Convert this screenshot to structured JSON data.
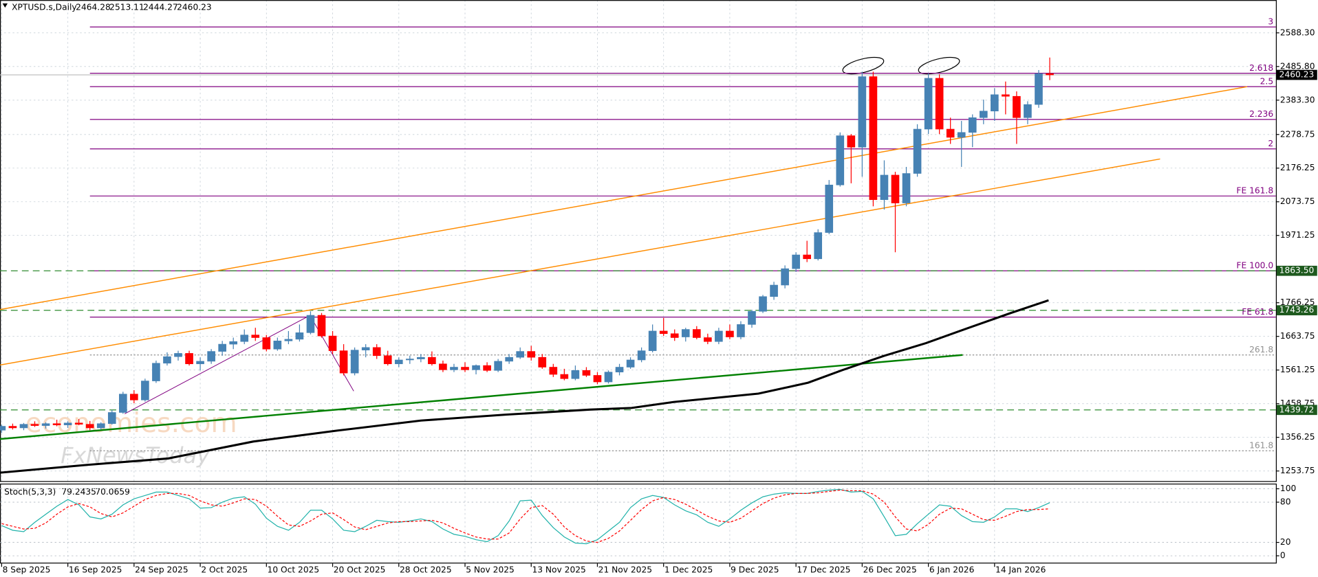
{
  "chart_data": {
    "type": "candlestick",
    "title": "XPTUSD.s,Daily",
    "categories": [
      "8 Sep 2025",
      null,
      null,
      null,
      null,
      null,
      "16 Sep 2025",
      null,
      null,
      null,
      null,
      null,
      "24 Sep 2025",
      null,
      null,
      null,
      null,
      null,
      "2 Oct 2025",
      null,
      null,
      null,
      null,
      null,
      "10 Oct 2025",
      null,
      null,
      null,
      null,
      null,
      "20 Oct 2025",
      null,
      null,
      null,
      null,
      null,
      "28 Oct 2025",
      null,
      null,
      null,
      null,
      null,
      "5 Nov 2025",
      null,
      null,
      null,
      null,
      null,
      "13 Nov 2025",
      null,
      null,
      null,
      null,
      null,
      "21 Nov 2025",
      null,
      null,
      null,
      null,
      null,
      "1 Dec 2025",
      null,
      null,
      null,
      null,
      null,
      "9 Dec 2025",
      null,
      null,
      null,
      null,
      null,
      "17 Dec 2025",
      null,
      null,
      null,
      null,
      null,
      "26 Dec 2025",
      null,
      null,
      null,
      null,
      null,
      "6 Jan 2026",
      null,
      null,
      null,
      null,
      null,
      "14 Jan 2026",
      null,
      null,
      null,
      null,
      null
    ],
    "open": [
      1378,
      1390,
      1385,
      1396,
      1392,
      1398,
      1394,
      1400,
      1396,
      1385,
      1398,
      1432,
      1488,
      1470,
      1528,
      1582,
      1602,
      1612,
      1580,
      1588,
      1618,
      1640,
      1648,
      1668,
      1660,
      1625,
      1650,
      1655,
      1675,
      1728,
      1665,
      1620,
      1552,
      1622,
      1630,
      1605,
      1580,
      1592,
      1595,
      1600,
      1580,
      1562,
      1570,
      1562,
      1575,
      1560,
      1588,
      1600,
      1618,
      1600,
      1570,
      1548,
      1535,
      1560,
      1545,
      1525,
      1555,
      1570,
      1592,
      1620,
      1680,
      1672,
      1662,
      1685,
      1660,
      1648,
      1680,
      1662,
      1700,
      1740,
      1785,
      1820,
      1870,
      1912,
      1900,
      1980,
      2125,
      2275,
      2240,
      2455,
      2080,
      2155,
      2070,
      2160,
      2295,
      2450,
      2295,
      2270,
      2285,
      2330,
      2350,
      2400,
      2395,
      2330,
      2370,
      2464.28
    ],
    "high": [
      1395,
      1398,
      1400,
      1405,
      1402,
      1410,
      1405,
      1412,
      1406,
      1402,
      1440,
      1495,
      1500,
      1535,
      1590,
      1615,
      1620,
      1620,
      1600,
      1625,
      1650,
      1660,
      1685,
      1690,
      1668,
      1660,
      1680,
      1700,
      1740,
      1735,
      1680,
      1640,
      1630,
      1640,
      1640,
      1620,
      1600,
      1605,
      1610,
      1618,
      1590,
      1580,
      1585,
      1578,
      1585,
      1595,
      1610,
      1630,
      1635,
      1610,
      1580,
      1565,
      1575,
      1570,
      1555,
      1560,
      1580,
      1600,
      1630,
      1700,
      1720,
      1685,
      1690,
      1695,
      1672,
      1690,
      1700,
      1710,
      1745,
      1790,
      1830,
      1880,
      1920,
      1955,
      1990,
      2140,
      2285,
      2280,
      2470,
      2470,
      2200,
      2165,
      2180,
      2310,
      2465,
      2462,
      2330,
      2320,
      2340,
      2385,
      2420,
      2440,
      2410,
      2380,
      2475,
      2513.11
    ],
    "low": [
      1370,
      1380,
      1378,
      1388,
      1383,
      1390,
      1385,
      1393,
      1378,
      1380,
      1395,
      1428,
      1460,
      1465,
      1522,
      1575,
      1590,
      1575,
      1560,
      1580,
      1605,
      1625,
      1640,
      1650,
      1618,
      1620,
      1640,
      1648,
      1670,
      1660,
      1610,
      1545,
      1545,
      1600,
      1595,
      1575,
      1570,
      1580,
      1585,
      1575,
      1555,
      1555,
      1555,
      1548,
      1555,
      1555,
      1580,
      1595,
      1590,
      1565,
      1540,
      1530,
      1530,
      1540,
      1518,
      1520,
      1545,
      1565,
      1585,
      1615,
      1665,
      1650,
      1648,
      1655,
      1640,
      1640,
      1655,
      1655,
      1690,
      1735,
      1775,
      1810,
      1860,
      1890,
      1895,
      1975,
      2120,
      2130,
      2150,
      2060,
      2050,
      1920,
      2060,
      2150,
      2280,
      2280,
      2250,
      2180,
      2240,
      2310,
      2320,
      2340,
      2250,
      2310,
      2360,
      2444.27
    ],
    "close": [
      1390,
      1385,
      1396,
      1392,
      1398,
      1394,
      1400,
      1396,
      1385,
      1398,
      1432,
      1488,
      1470,
      1528,
      1582,
      1602,
      1612,
      1580,
      1588,
      1618,
      1640,
      1648,
      1668,
      1660,
      1625,
      1650,
      1655,
      1675,
      1728,
      1665,
      1620,
      1552,
      1622,
      1630,
      1605,
      1580,
      1592,
      1595,
      1600,
      1580,
      1562,
      1570,
      1562,
      1575,
      1560,
      1588,
      1600,
      1618,
      1600,
      1570,
      1548,
      1535,
      1560,
      1545,
      1525,
      1555,
      1570,
      1592,
      1620,
      1680,
      1672,
      1660,
      1685,
      1660,
      1648,
      1680,
      1662,
      1700,
      1740,
      1785,
      1820,
      1870,
      1912,
      1900,
      1980,
      2125,
      2275,
      2240,
      2455,
      2080,
      2155,
      2070,
      2160,
      2295,
      2450,
      2295,
      2270,
      2285,
      2330,
      2350,
      2400,
      2395,
      2330,
      2370,
      2464.28,
      2460.23
    ],
    "up_color": "#4682b4",
    "down_color": "#ff0000",
    "xlim": [
      -0.15,
      115.5
    ],
    "ylim": [
      1223,
      2688.2
    ],
    "yticks": [
      {
        "value": 2588.3,
        "label": "2588.30"
      },
      {
        "value": 2485.8,
        "label": "2485.80"
      },
      {
        "value": 2383.3,
        "label": "2383.30"
      },
      2278.75,
      2176.25,
      2073.75,
      1971.25,
      1766.25,
      1663.75,
      1561.25,
      1458.75,
      1356.25,
      1253.75
    ],
    "grid": true,
    "levels": [
      {
        "label": "3",
        "value": 2606.2,
        "color": "#800080",
        "dotted": false
      },
      {
        "label": "2.618",
        "value": 2465.3,
        "color": "#800080",
        "dotted": false
      },
      {
        "label": "2.5",
        "value": 2424.4,
        "color": "#800080",
        "dotted": false
      },
      {
        "label": "2.236",
        "value": 2324.5,
        "color": "#800080",
        "dotted": false
      },
      {
        "label": "2",
        "value": 2234.8,
        "color": "#800080",
        "dotted": false
      },
      {
        "label": "FE 161.8",
        "value": 2091.4,
        "color": "#800080",
        "dotted": false
      },
      {
        "label": "FE 100.0",
        "value": 1863.5,
        "color": "#800080",
        "dotted": false
      },
      {
        "label": "FE 61.8",
        "value": 1722.5,
        "color": "#800080",
        "dotted": false
      },
      {
        "label": "261.8",
        "value": 1607.2,
        "color": "#909090",
        "dotted": true
      },
      {
        "label": "161.8",
        "value": 1315.2,
        "color": "#909090",
        "dotted": true
      }
    ],
    "price_tags": [
      {
        "price": 2460.23,
        "color": "#000000",
        "line_color": "#c0c0c0",
        "dashed": false
      },
      {
        "price": {
          "value": 1863.5,
          "label": "1863.50"
        },
        "color": "#1e5a1e",
        "line_color": "#2e8b2e",
        "dashed": true
      },
      {
        "price": 1743.26,
        "color": "#1e5a1e",
        "line_color": "#2e8b2e",
        "dashed": true
      },
      {
        "price": 1439.72,
        "color": "#1e5a1e",
        "line_color": "#2e8b2e",
        "dashed": true
      }
    ],
    "lines": [
      {
        "color": "#ff8c00",
        "width": 1.2,
        "x": [
          -0.15,
          112.9
        ],
        "y": [
          1745.6,
          2424.4
        ]
      },
      {
        "color": "#ff8c00",
        "width": 1.2,
        "x": [
          -0.15,
          105.0
        ],
        "y": [
          1576.5,
          2204.1
        ]
      },
      {
        "color": "#008000",
        "width": 2,
        "x": [
          -0.15,
          87.1
        ],
        "y": [
          1351.1,
          1607.2
        ]
      },
      {
        "color": "#800080",
        "width": 0.8,
        "x": [
          11.15,
          27.94,
          31.91
        ],
        "y": [
          1428,
          1727.6,
          1497
        ]
      },
      {
        "color": "#000000",
        "width": 2.5,
        "x": [
          -0.15,
          7.5,
          15.1,
          22.8,
          30.4,
          38.0,
          45.7,
          53.3,
          57.1,
          60.9,
          68.6,
          73.1,
          76.2,
          80.0,
          83.8,
          87.6,
          91.5,
          94.9
        ],
        "y": [
          1248.6,
          1271.6,
          1292,
          1343.5,
          1376.7,
          1407.4,
          1425.4,
          1440.8,
          1445.9,
          1463.8,
          1489.4,
          1522.7,
          1561.2,
          1604.7,
          1643.3,
          1689.3,
          1735.4,
          1773.8
        ]
      }
    ],
    "watermark": [
      "economies.com",
      "FxNewsToday"
    ],
    "indicator": {
      "type": "line",
      "name": "Stoch(5,3,3)",
      "ylim": [
        -11.5,
        107.7
      ],
      "yticks": [
        0,
        20,
        80,
        100
      ],
      "series": [
        {
          "color": "#20b2aa",
          "dashed": false,
          "values": [
            45,
            38,
            36,
            50,
            62,
            74,
            84,
            76,
            58,
            55,
            62,
            76,
            85,
            90,
            95,
            95,
            90,
            85,
            71,
            72,
            80,
            86,
            88,
            77,
            56,
            44,
            38,
            50,
            68,
            68,
            55,
            38,
            36,
            44,
            53,
            51,
            50,
            52,
            55,
            51,
            40,
            32,
            29,
            24,
            21,
            30,
            52,
            82,
            83,
            60,
            42,
            28,
            19,
            18,
            24,
            37,
            50,
            72,
            85,
            90,
            87,
            76,
            67,
            61,
            50,
            44,
            55,
            68,
            79,
            88,
            92,
            94,
            93,
            93,
            96,
            98,
            99,
            95,
            96,
            85,
            58,
            30,
            32,
            48,
            62,
            76,
            74,
            60,
            51,
            50,
            58,
            70,
            70,
            66,
            72,
            79.2435
          ]
        },
        {
          "color": "#ff0000",
          "dashed": true,
          "values": [
            48,
            44,
            40,
            41,
            49,
            62,
            73,
            78,
            73,
            63,
            58,
            64,
            74,
            84,
            90,
            93,
            93,
            90,
            82,
            76,
            74,
            79,
            85,
            84,
            74,
            59,
            46,
            44,
            52,
            62,
            64,
            54,
            43,
            39,
            44,
            49,
            51,
            51,
            52,
            53,
            49,
            41,
            34,
            28,
            25,
            25,
            34,
            55,
            72,
            75,
            62,
            43,
            30,
            22,
            20,
            26,
            37,
            53,
            69,
            82,
            87,
            84,
            77,
            68,
            59,
            52,
            50,
            56,
            67,
            78,
            86,
            91,
            93,
            93,
            94,
            96,
            98,
            97,
            97,
            92,
            80,
            58,
            40,
            37,
            47,
            62,
            71,
            70,
            62,
            54,
            53,
            59,
            66,
            69,
            69,
            70.0659
          ]
        }
      ]
    }
  }
}
